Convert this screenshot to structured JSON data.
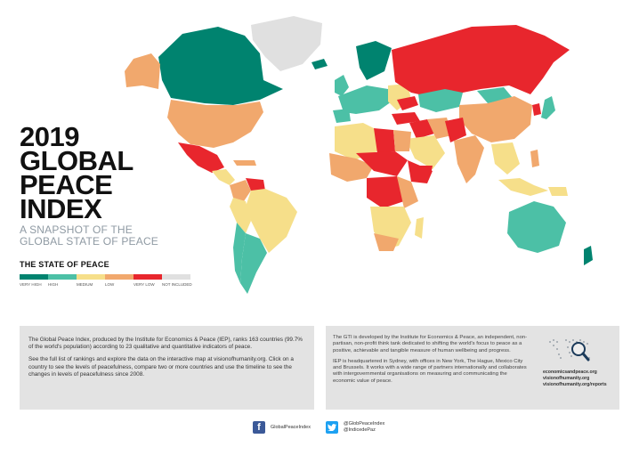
{
  "title_lines": [
    "2019",
    "GLOBAL",
    "PEACE",
    "INDEX"
  ],
  "subtitle_lines": [
    "A SNAPSHOT OF THE",
    "GLOBAL STATE OF PEACE"
  ],
  "legend": {
    "title": "THE STATE OF PEACE",
    "items": [
      {
        "label": "VERY HIGH",
        "color": "#00836f"
      },
      {
        "label": "HIGH",
        "color": "#4cc0a6"
      },
      {
        "label": "MEDIUM",
        "color": "#f6df8a"
      },
      {
        "label": "LOW",
        "color": "#f1a86d"
      },
      {
        "label": "VERY LOW",
        "color": "#e8262d"
      },
      {
        "label": "NOT INCLUDED",
        "color": "#e0e0e0"
      }
    ]
  },
  "map_colors": {
    "very_high": "#00836f",
    "high": "#4cc0a6",
    "medium": "#f6df8a",
    "low": "#f1a86d",
    "very_low": "#e8262d",
    "not_included": "#e0e0e0"
  },
  "left_panel": {
    "p1": "The Global Peace Index, produced by the Institute for Economics & Peace (IEP), ranks 163 countries (99.7% of the world's population) according to 23 qualitative and quantitative indicators of peace.",
    "p2": "See the full list of rankings and explore the data on the interactive map at visionofhumanity.org. Click on a country to see the levels of peacefulness, compare two or more countries and use the timeline to see the changes in levels of peacefulness since 2008."
  },
  "right_panel": {
    "p1": "The GTI is developed by the Institute for Economics & Peace, an independent, non-partisan, non-profit think tank dedicated to shifting the world's focus to peace as a positive, achievable and tangible measure of human wellbeing and progress.",
    "p2": "IEP is headquartered in Sydney, with offices in New York, The Hague, Mexico City and Brussels. It works with a wide range of partners internationally and collaborates with intergovernmental organisations on measuring and communicating the economic value of peace.",
    "links": [
      "economicsandpeace.org",
      "visionofhumanity.org",
      "visionofhumanity.org/reports"
    ]
  },
  "social": {
    "facebook": "GlobalPeaceIndex",
    "twitter": [
      "@GlobPeaceIndex",
      "@IndicedePaz"
    ]
  }
}
